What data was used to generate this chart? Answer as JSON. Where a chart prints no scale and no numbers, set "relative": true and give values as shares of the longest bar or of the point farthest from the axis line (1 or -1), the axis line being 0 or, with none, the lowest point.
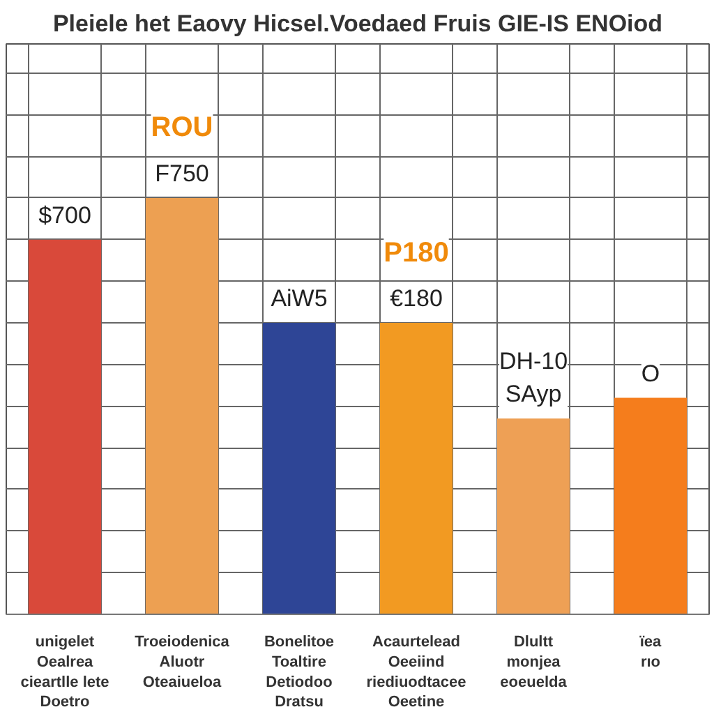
{
  "chart_data": {
    "type": "bar",
    "title": "Pleiele het Eaovy Hicsel.Voedaed Fruis GIE-IS ENOiod",
    "categories": [
      "unigelet\nOealrea\ncieartlle lete\nDoetro",
      "Troeiodenica\nAluotr\nOteaiueloa",
      "Bonelitoe\nToaltire\nDetiodoo\nDratsu",
      "Acaurtelead\nOeeiind\nriediuodtacee\nOeetine",
      "Dlultt\nmonjea\neoeuelda",
      "ïea\nrıo"
    ],
    "values": [
      0.9,
      1.0,
      0.7,
      0.7,
      0.47,
      0.52
    ],
    "relative": true,
    "colors": [
      "#d9493a",
      "#eda052",
      "#2e4596",
      "#f29a22",
      "#eea055",
      "#f57d1c"
    ],
    "annotations": [
      {
        "text": "$700",
        "x": "unigelet\nOealrea\ncieartlle lete\nDoetro",
        "y": 0.9
      },
      {
        "text": "F750",
        "x": "Troeiodenica\nAluotr\nOteaiueloa",
        "y": 1.0
      },
      {
        "text": "ROU",
        "x": "Troeiodenica\nAluotr\nOteaiueloa",
        "y": 1.0
      },
      {
        "text": "AiW5",
        "x": "Bonelitoe\nToaltire\nDetiodoo\nDratsu",
        "y": 0.7
      },
      {
        "text": "€180",
        "x": "Acaurtelead\nOeeiind\nriediuodtacee\nOeetine",
        "y": 0.7
      },
      {
        "text": "P180",
        "x": "Acaurtelead\nOeeiind\nriediuodtacee\nOeetine",
        "y": 0.7
      },
      {
        "text": "DH-10\nSAyp",
        "x": "Dlultt\nmonjea\neoeuelda",
        "y": 0.47
      },
      {
        "text": "O",
        "x": "ïea\nrıo",
        "y": 0.52
      }
    ],
    "grid": true
  }
}
